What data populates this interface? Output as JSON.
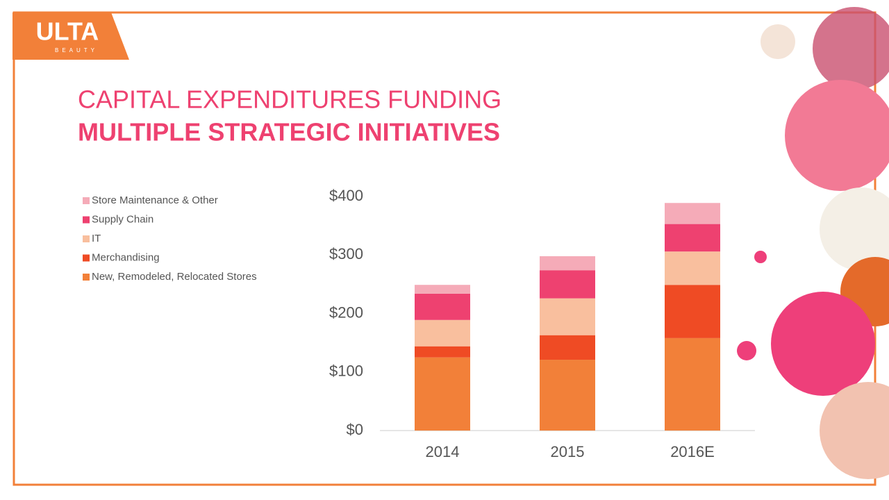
{
  "logo": {
    "name": "ULTA",
    "tagline": "BEAUTY"
  },
  "chart_data": {
    "type": "stacked_bar",
    "title": "CAPITAL EXPENDITURES FUNDING",
    "subtitle": "MULTIPLE STRATEGIC INITIATIVES",
    "categories": [
      "2014",
      "2015",
      "2016E"
    ],
    "series": [
      {
        "name": "New, Remodeled, Relocated Stores",
        "color": "#f28039",
        "values": [
          125,
          121,
          158
        ]
      },
      {
        "name": "Merchandising",
        "color": "#ef4b24",
        "values": [
          19,
          42,
          91
        ]
      },
      {
        "name": "IT",
        "color": "#f9bf9e",
        "values": [
          45,
          63,
          57
        ]
      },
      {
        "name": "Supply Chain",
        "color": "#ee4170",
        "values": [
          45,
          48,
          47
        ]
      },
      {
        "name": "Store Maintenance & Other",
        "color": "#f5abb8",
        "values": [
          15,
          24,
          36
        ]
      }
    ],
    "ylim": [
      0,
      400
    ],
    "yticks": [
      {
        "value": 0,
        "label": "$0"
      },
      {
        "value": 100,
        "label": "$100"
      },
      {
        "value": 200,
        "label": "$200"
      },
      {
        "value": 300,
        "label": "$300"
      },
      {
        "value": 400,
        "label": "$400"
      }
    ],
    "legend": "top-left"
  }
}
